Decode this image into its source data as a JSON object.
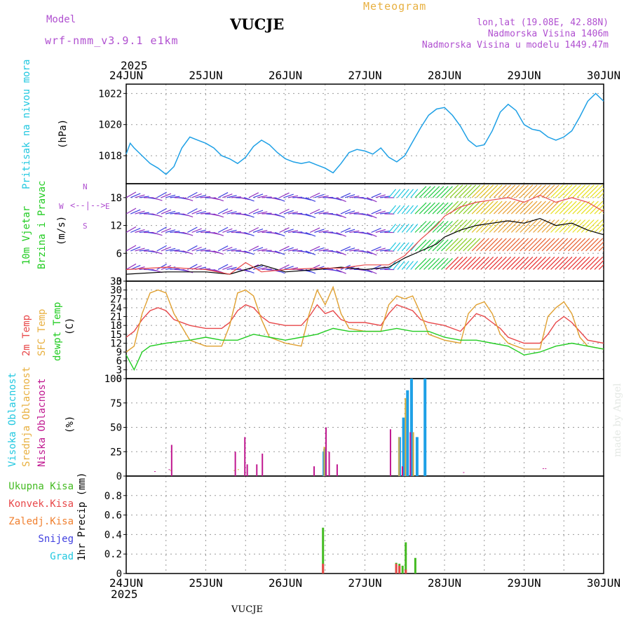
{
  "header": {
    "model_label": "Model",
    "model_name": "wrf-nmm_v3.9.1  e1km",
    "station": "VUCJE",
    "meteogram": "Meteogram",
    "lonlat": "lon,lat (19.08E, 42.88N)",
    "altitude": "Nadmorska Visina 1406m",
    "model_altitude": "Nadmorska Visina u modelu 1449.47m",
    "year_top": "2025",
    "year_bottom": "2025",
    "footer_station": "VUCJE",
    "credit": "made by Angel"
  },
  "colors": {
    "pressure": "#1ea0e6",
    "temp2m": "#e8484a",
    "sfc_temp": "#e0a030",
    "dewpoint": "#22cc22",
    "wind_speed": "#000000",
    "gust": "#e8484a",
    "high_cloud": "#1ea0e6",
    "mid_cloud": "#d8b040",
    "low_cloud": "#c01890",
    "total_precip": "#44bb22",
    "conv_precip": "#e8484a",
    "label_purple": "#b050d0",
    "label_orange": "#e8b040",
    "cyan": "#22c8e0",
    "snow": "#4040e0",
    "frozen": "#f08030"
  },
  "chart_data": [
    {
      "type": "line",
      "panel": "pressure",
      "ylabel_name": "Pritisak na nivou mora",
      "ylabel_unit": "(hPa)",
      "x_categories": [
        "24JUN",
        "25JUN",
        "26JUN",
        "27JUN",
        "28JUN",
        "29JUN",
        "30JUN"
      ],
      "ylim": [
        1016.2,
        1022.6
      ],
      "yticks": [
        "1018",
        "1020",
        "1022"
      ],
      "grid": true,
      "series": [
        {
          "x": [
            0,
            0.05,
            0.1,
            0.2,
            0.3,
            0.4,
            0.5,
            0.6,
            0.7,
            0.8,
            0.9,
            1.0,
            1.1,
            1.2,
            1.3,
            1.4,
            1.5,
            1.6,
            1.7,
            1.8,
            1.9,
            2.0,
            2.1,
            2.2,
            2.3,
            2.4,
            2.5,
            2.6,
            2.7,
            2.8,
            2.9,
            3.0,
            3.1,
            3.2,
            3.3,
            3.4,
            3.5,
            3.6,
            3.7,
            3.8,
            3.9,
            4.0,
            4.1,
            4.2,
            4.3,
            4.4,
            4.5,
            4.6,
            4.7,
            4.8,
            4.9,
            5.0,
            5.1,
            5.2,
            5.3,
            5.4,
            5.5,
            5.6,
            5.7,
            5.8,
            5.9,
            6.0
          ],
          "y": [
            1018.1,
            1018.8,
            1018.5,
            1018.0,
            1017.5,
            1017.2,
            1016.8,
            1017.3,
            1018.5,
            1019.2,
            1019.0,
            1018.8,
            1018.5,
            1018.0,
            1017.8,
            1017.5,
            1017.9,
            1018.6,
            1019.0,
            1018.7,
            1018.2,
            1017.8,
            1017.6,
            1017.5,
            1017.6,
            1017.4,
            1017.2,
            1016.9,
            1017.5,
            1018.2,
            1018.4,
            1018.3,
            1018.1,
            1018.5,
            1017.9,
            1017.6,
            1018.0,
            1018.9,
            1019.8,
            1020.6,
            1021.0,
            1021.1,
            1020.6,
            1019.9,
            1019.0,
            1018.6,
            1018.7,
            1019.6,
            1020.8,
            1021.3,
            1020.9,
            1020.0,
            1019.7,
            1019.6,
            1019.2,
            1019.0,
            1019.2,
            1019.6,
            1020.5,
            1021.5,
            1022.0,
            1021.5
          ],
          "color_key": "pressure"
        }
      ]
    },
    {
      "type": "line",
      "panel": "wind",
      "ylabel_name1": "10m Vjetar",
      "ylabel_name2": "Brzina i Pravac",
      "ylabel_unit": "(m/s)",
      "compass": {
        "n": "N",
        "s": "S",
        "e": "E",
        "w": "W"
      },
      "ylim": [
        0,
        21
      ],
      "yticks": [
        "0",
        "6",
        "12",
        "18"
      ],
      "grid": true,
      "series": [
        {
          "name": "speed",
          "x": [
            0,
            0.5,
            1.0,
            1.3,
            1.5,
            1.7,
            2.0,
            2.4,
            2.7,
            3.0,
            3.3,
            3.5,
            3.7,
            3.9,
            4.0,
            4.2,
            4.4,
            4.6,
            4.8,
            5.0,
            5.2,
            5.4,
            5.6,
            5.8,
            6.0
          ],
          "y": [
            1.5,
            2.0,
            2.0,
            1.5,
            2.5,
            3.5,
            2.0,
            2.5,
            3.0,
            2.5,
            3.0,
            5.0,
            6.5,
            8.0,
            9.5,
            11.0,
            12.0,
            12.5,
            13.0,
            12.5,
            13.5,
            12.0,
            12.5,
            11.0,
            10.0
          ],
          "color_key": "wind_speed"
        },
        {
          "name": "gust",
          "x": [
            0,
            0.5,
            1.0,
            1.3,
            1.5,
            1.7,
            2.0,
            2.4,
            2.7,
            3.0,
            3.3,
            3.5,
            3.7,
            3.9,
            4.0,
            4.2,
            4.4,
            4.6,
            4.8,
            5.0,
            5.2,
            5.4,
            5.6,
            5.8,
            6.0
          ],
          "y": [
            2.5,
            3.0,
            2.5,
            1.5,
            4.0,
            2.0,
            2.5,
            2.8,
            2.8,
            3.5,
            3.5,
            5.5,
            9.0,
            12.0,
            14.0,
            16.0,
            17.0,
            17.5,
            18.0,
            17.0,
            18.5,
            17.0,
            18.0,
            17.0,
            15.0
          ],
          "color_key": "gust"
        }
      ]
    },
    {
      "type": "line",
      "panel": "temperature",
      "ylabel_name1": "2m Temp",
      "ylabel_name2": "SFC Temp",
      "ylabel_name3": "dewpt Temp",
      "ylabel_unit": "(C)",
      "ylim": [
        0,
        33
      ],
      "yticks": [
        "0",
        "3",
        "6",
        "9",
        "12",
        "15",
        "18",
        "21",
        "24",
        "27",
        "30",
        "33"
      ],
      "grid": true,
      "series": [
        {
          "name": "2m Temp",
          "x": [
            0,
            0.1,
            0.2,
            0.3,
            0.4,
            0.5,
            0.6,
            0.8,
            1.0,
            1.2,
            1.3,
            1.4,
            1.5,
            1.6,
            1.7,
            1.8,
            2.0,
            2.2,
            2.3,
            2.4,
            2.5,
            2.6,
            2.7,
            2.8,
            3.0,
            3.2,
            3.3,
            3.4,
            3.5,
            3.6,
            3.7,
            3.8,
            4.0,
            4.2,
            4.3,
            4.4,
            4.5,
            4.6,
            4.7,
            4.8,
            5.0,
            5.2,
            5.3,
            5.4,
            5.5,
            5.6,
            5.7,
            5.8,
            6.0
          ],
          "y": [
            14,
            16,
            20,
            23,
            24,
            23,
            20,
            18,
            17,
            17,
            19,
            23,
            25,
            24,
            21,
            19,
            18,
            18,
            21,
            25,
            22,
            23,
            20,
            19,
            19,
            18,
            22,
            25,
            24,
            23,
            20,
            19,
            18,
            16,
            19,
            22,
            21,
            19,
            17,
            14,
            12,
            12,
            15,
            19,
            21,
            19,
            16,
            13,
            12
          ],
          "color_key": "temp2m"
        },
        {
          "name": "SFC Temp",
          "x": [
            0,
            0.1,
            0.2,
            0.3,
            0.4,
            0.5,
            0.6,
            0.8,
            1.0,
            1.2,
            1.3,
            1.4,
            1.5,
            1.6,
            1.7,
            1.8,
            2.0,
            2.2,
            2.3,
            2.4,
            2.5,
            2.6,
            2.7,
            2.8,
            3.0,
            3.2,
            3.3,
            3.4,
            3.5,
            3.6,
            3.7,
            3.8,
            4.0,
            4.2,
            4.3,
            4.4,
            4.5,
            4.6,
            4.7,
            4.8,
            5.0,
            5.2,
            5.3,
            5.4,
            5.5,
            5.6,
            5.7,
            5.8,
            6.0
          ],
          "y": [
            9,
            11,
            22,
            29,
            30,
            29,
            22,
            13,
            11,
            11,
            18,
            29,
            30,
            28,
            20,
            14,
            12,
            11,
            22,
            30,
            25,
            31,
            22,
            17,
            16,
            16,
            25,
            28,
            27,
            28,
            22,
            15,
            13,
            12,
            22,
            25,
            26,
            22,
            15,
            12,
            10,
            10,
            21,
            24,
            26,
            22,
            14,
            11,
            10
          ],
          "color_key": "sfc_temp"
        },
        {
          "name": "dewpt Temp",
          "x": [
            0,
            0.1,
            0.2,
            0.3,
            0.5,
            0.8,
            1.0,
            1.2,
            1.4,
            1.6,
            1.8,
            2.0,
            2.2,
            2.4,
            2.6,
            2.8,
            3.0,
            3.2,
            3.4,
            3.6,
            3.8,
            4.0,
            4.2,
            4.4,
            4.6,
            4.8,
            5.0,
            5.2,
            5.4,
            5.6,
            5.8,
            6.0
          ],
          "y": [
            8,
            3,
            9,
            11,
            12,
            13,
            14,
            13,
            13,
            15,
            14,
            13,
            14,
            15,
            17,
            16,
            16,
            16,
            17,
            16,
            16,
            14,
            13,
            13,
            12,
            11,
            8,
            9,
            11,
            12,
            11,
            10
          ],
          "color_key": "dewpoint"
        }
      ]
    },
    {
      "type": "bar",
      "panel": "cloud",
      "ylabel_name1": "Visoka Oblacnost",
      "ylabel_name2": "Srednja Oblacnost",
      "ylabel_name3": "Niska Oblacnost",
      "ylabel_unit": "(%)",
      "ylim": [
        0,
        100
      ],
      "yticks": [
        "0",
        "25",
        "50",
        "75",
        "100"
      ],
      "grid": true,
      "series": [
        {
          "name": "high",
          "x": [
            2.45,
            2.46,
            3.4,
            3.45,
            3.5,
            3.55,
            3.62,
            3.72
          ],
          "y": [
            25,
            28,
            40,
            60,
            88,
            100,
            40,
            100
          ],
          "color_key": "high_cloud"
        },
        {
          "name": "mid",
          "x": [
            0.55,
            1.35,
            1.4,
            2.48,
            3.42,
            3.5,
            3.6
          ],
          "y": [
            6,
            6,
            7,
            30,
            40,
            80,
            45
          ],
          "color_key": "mid_cloud"
        },
        {
          "name": "low",
          "x": [
            0.37,
            0.55,
            0.58,
            1.38,
            1.5,
            1.53,
            1.65,
            1.72,
            2.37,
            2.52,
            2.56,
            2.66,
            3.33,
            3.48,
            3.58,
            4.25,
            5.25,
            5.28
          ],
          "y": [
            5,
            7,
            32,
            25,
            40,
            12,
            12,
            23,
            10,
            50,
            25,
            12,
            48,
            10,
            45,
            4,
            8,
            8
          ],
          "color_key": "low_cloud"
        }
      ]
    },
    {
      "type": "bar",
      "panel": "precip",
      "ylabel_unit": "1hr Precip (mm)",
      "legend": [
        "Ukupna Kisa",
        "Konvek.Kisa",
        "Zaledj.Kisa",
        "Snijeg",
        "Grad"
      ],
      "ylim": [
        0,
        1.0
      ],
      "yticks": [
        "0",
        "0.2",
        "0.4",
        "0.6",
        "0.8"
      ],
      "grid": true,
      "series": [
        {
          "name": "Ukupna Kisa",
          "x": [
            2.46,
            3.38,
            3.42,
            3.46,
            3.5,
            3.62
          ],
          "y": [
            0.47,
            0.11,
            0.1,
            0.08,
            0.32,
            0.16
          ],
          "color_key": "total_precip"
        },
        {
          "name": "Konvek.Kisa",
          "x": [
            2.46,
            3.38,
            3.42,
            3.5
          ],
          "y": [
            0.1,
            0.1,
            0.08,
            0.04
          ],
          "color_key": "conv_precip"
        }
      ]
    }
  ]
}
